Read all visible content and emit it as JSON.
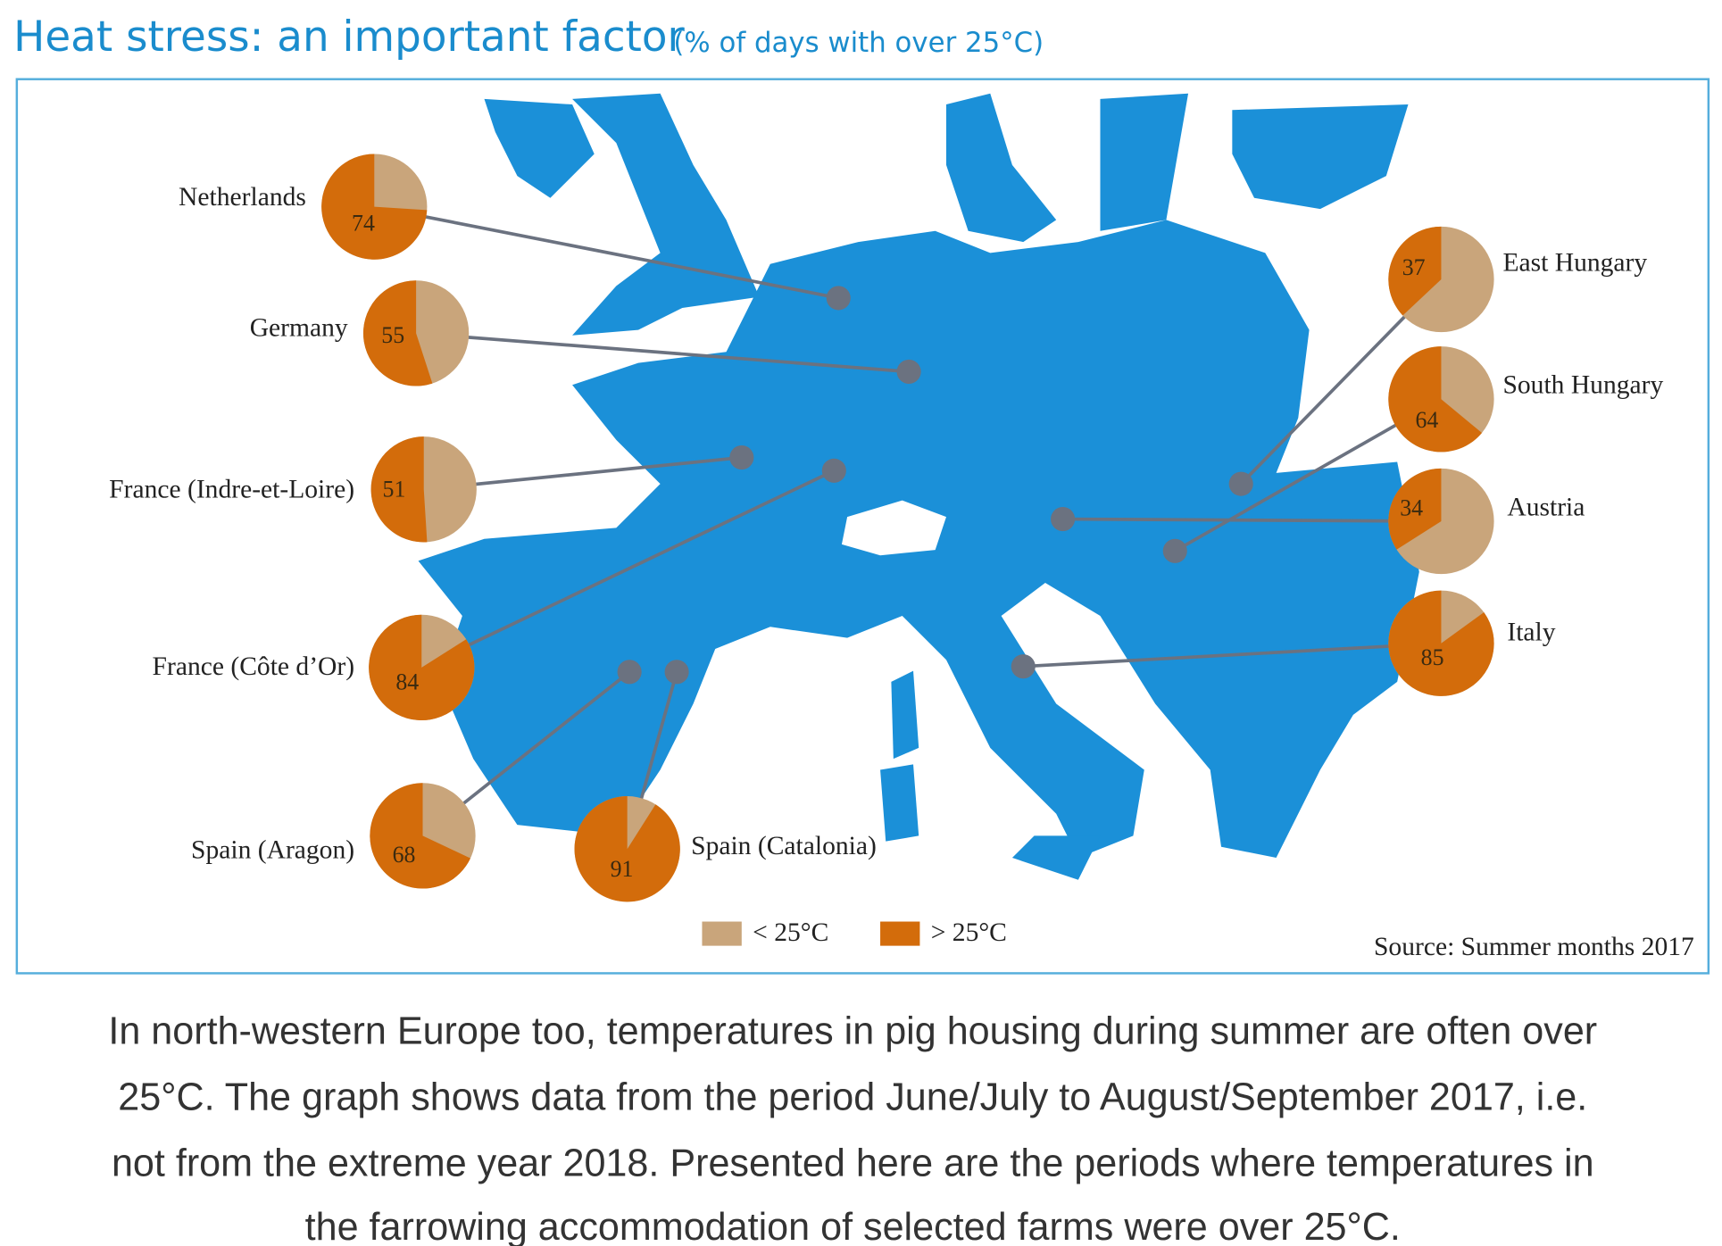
{
  "chart_data": {
    "type": "pie",
    "title": "Heat stress: an important factor",
    "subtitle": "(% of days with over 25°C)",
    "legend": [
      {
        "name": "< 25°C",
        "color": "#c9a57b"
      },
      {
        "name": "> 25°C",
        "color": "#d36c0b"
      }
    ],
    "pies": [
      {
        "name": "Netherlands",
        "value": 74
      },
      {
        "name": "Germany",
        "value": 55
      },
      {
        "name": "France (Indre-et-Loire)",
        "value": 51
      },
      {
        "name": "France (Côte d’Or)",
        "value": 84
      },
      {
        "name": "Spain (Aragon)",
        "value": 68
      },
      {
        "name": "Spain (Catalonia)",
        "value": 91
      },
      {
        "name": "East Hungary",
        "value": 37
      },
      {
        "name": "South Hungary",
        "value": 64
      },
      {
        "name": "Austria",
        "value": 34
      },
      {
        "name": "Italy",
        "value": 85
      }
    ],
    "source": "Source: Summer months 2017"
  },
  "description": [
    "In north-western Europe too, temperatures in pig housing during summer are often over",
    "25°C. The graph shows data from the period June/July to August/September 2017, i.e.",
    "not from the extreme year 2018. Presented here are the periods where temperatures in",
    "the farrowing accommodation of selected farms were over 25°C."
  ]
}
